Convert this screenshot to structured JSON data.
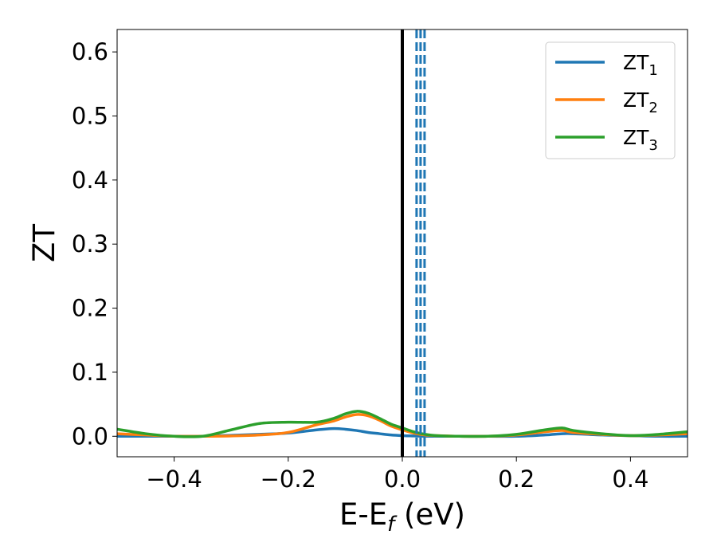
{
  "chart_data": {
    "type": "line",
    "xlabel": {
      "main": "E-E",
      "sub": "f",
      "unit": " (eV)"
    },
    "ylabel": "ZT",
    "xlim": [
      -0.5,
      0.5
    ],
    "ylim": [
      -0.032,
      0.635
    ],
    "x_ticks": [
      -0.4,
      -0.2,
      0.0,
      0.2,
      0.4
    ],
    "x_tick_labels": [
      "−0.4",
      "−0.2",
      "0.0",
      "0.2",
      "0.4"
    ],
    "y_ticks": [
      0.0,
      0.1,
      0.2,
      0.3,
      0.4,
      0.5,
      0.6
    ],
    "y_tick_labels": [
      "0.0",
      "0.1",
      "0.2",
      "0.3",
      "0.4",
      "0.5",
      "0.6"
    ],
    "grid": false,
    "legend_position": "top-right",
    "fermi_line_x": 0.0,
    "dashed_lines_x": [
      0.025,
      0.032,
      0.039
    ],
    "dashed_line_color": "#1f77b4",
    "fermi_line_color": "#000000",
    "x": [
      -0.5,
      -0.45,
      -0.4,
      -0.35,
      -0.3,
      -0.25,
      -0.2,
      -0.15,
      -0.12,
      -0.1,
      -0.08,
      -0.06,
      -0.04,
      -0.02,
      0.0,
      0.02,
      0.04,
      0.06,
      0.1,
      0.15,
      0.2,
      0.25,
      0.28,
      0.3,
      0.35,
      0.4,
      0.45,
      0.5
    ],
    "series": [
      {
        "name_main": "ZT",
        "name_sub": "1",
        "color": "#1f77b4",
        "values": [
          0.0,
          0.0,
          0.0,
          0.0,
          0.0015,
          0.003,
          0.005,
          0.01,
          0.012,
          0.011,
          0.009,
          0.006,
          0.004,
          0.002,
          0.001,
          0.0005,
          0.0,
          0.0,
          0.0,
          0.0,
          0.0,
          0.002,
          0.004,
          0.004,
          0.002,
          0.001,
          0.0,
          0.0
        ]
      },
      {
        "name_main": "ZT",
        "name_sub": "2",
        "color": "#ff7f0e",
        "values": [
          0.004,
          0.002,
          0.0,
          0.0,
          0.0005,
          0.002,
          0.006,
          0.018,
          0.024,
          0.03,
          0.034,
          0.032,
          0.025,
          0.016,
          0.01,
          0.005,
          0.002,
          0.001,
          0.0,
          0.0,
          0.002,
          0.007,
          0.009,
          0.006,
          0.003,
          0.001,
          0.002,
          0.004
        ]
      },
      {
        "name_main": "ZT",
        "name_sub": "3",
        "color": "#2ca02c",
        "values": [
          0.011,
          0.004,
          0.0,
          0.0,
          0.01,
          0.02,
          0.022,
          0.022,
          0.028,
          0.035,
          0.039,
          0.036,
          0.028,
          0.019,
          0.013,
          0.007,
          0.003,
          0.001,
          0.0,
          0.0,
          0.003,
          0.01,
          0.013,
          0.009,
          0.004,
          0.001,
          0.003,
          0.007
        ]
      }
    ]
  }
}
